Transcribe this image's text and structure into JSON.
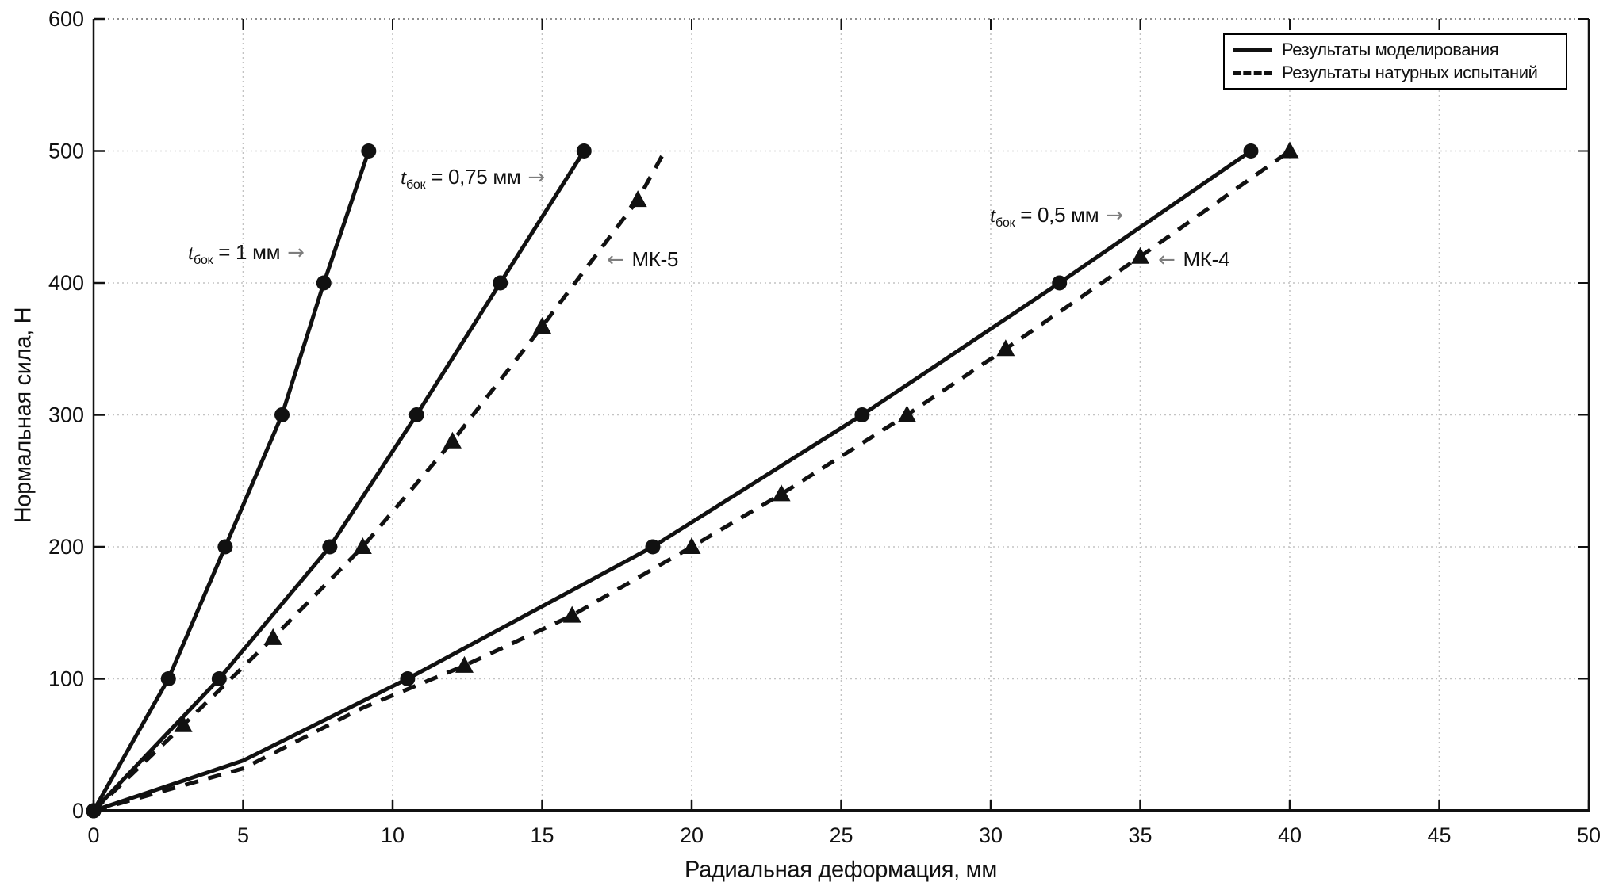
{
  "figure": {
    "background": "#ffffff",
    "line_color": "#111111",
    "grid_color": "#c3c3c3",
    "arrow_color": "#7d7d7d"
  },
  "axes": {
    "x_label": "Радиальная деформация, мм",
    "y_label": "Нормальная сила, Н"
  },
  "legend": {
    "items": [
      {
        "label": "Результаты моделирования",
        "style": "solid"
      },
      {
        "label": "Результаты натурных испытаний",
        "style": "dashed"
      }
    ]
  },
  "annotations": [
    {
      "t": "t",
      "sub": "бок",
      "rest": " = 1 мм ",
      "arrow": "→"
    },
    {
      "t": "t",
      "sub": "бок",
      "rest": " = 0,75 мм ",
      "arrow": "→"
    },
    {
      "t": "t",
      "sub": "бок",
      "rest": " = 0,5 мм ",
      "arrow": "→"
    },
    {
      "arrow": "← ",
      "text": "МК-5"
    },
    {
      "arrow": "← ",
      "text": "МК-4"
    }
  ],
  "chart_data": {
    "type": "line",
    "title": "",
    "xlabel": "Радиальная деформация, мм",
    "ylabel": "Нормальная сила, Н",
    "xlim": [
      0,
      50
    ],
    "ylim": [
      0,
      600
    ],
    "xticks": [
      0,
      5,
      10,
      15,
      20,
      25,
      30,
      35,
      40,
      45,
      50
    ],
    "yticks": [
      0,
      100,
      200,
      300,
      400,
      500,
      600
    ],
    "grid": true,
    "legend_position": "top-right",
    "series": [
      {
        "name": "Результаты моделирования, t_бок = 1 мм",
        "line": "solid",
        "marker": "circle",
        "points": [
          [
            0,
            0
          ],
          [
            2.5,
            100
          ],
          [
            4.4,
            200
          ],
          [
            6.3,
            300
          ],
          [
            7.7,
            400
          ],
          [
            9.2,
            500
          ]
        ],
        "marker_points": [
          [
            0,
            0
          ],
          [
            2.5,
            100
          ],
          [
            4.4,
            200
          ],
          [
            6.3,
            300
          ],
          [
            7.7,
            400
          ],
          [
            9.2,
            500
          ]
        ]
      },
      {
        "name": "Результаты моделирования, t_бок = 0,75 мм",
        "line": "solid",
        "marker": "circle",
        "points": [
          [
            0,
            0
          ],
          [
            4.2,
            100
          ],
          [
            7.9,
            200
          ],
          [
            10.8,
            300
          ],
          [
            13.6,
            400
          ],
          [
            16.4,
            500
          ]
        ],
        "marker_points": [
          [
            0,
            0
          ],
          [
            4.2,
            100
          ],
          [
            7.9,
            200
          ],
          [
            10.8,
            300
          ],
          [
            13.6,
            400
          ],
          [
            16.4,
            500
          ]
        ]
      },
      {
        "name": "Результаты натурных испытаний, МК-5",
        "line": "dashed",
        "marker": "triangle",
        "points": [
          [
            0,
            0
          ],
          [
            3,
            65
          ],
          [
            6,
            131
          ],
          [
            9,
            200
          ],
          [
            12,
            280
          ],
          [
            15,
            367
          ],
          [
            18.2,
            463
          ],
          [
            19.1,
            500
          ]
        ],
        "marker_points": [
          [
            3,
            65
          ],
          [
            6,
            131
          ],
          [
            9,
            200
          ],
          [
            12,
            280
          ],
          [
            15,
            367
          ],
          [
            18.2,
            463
          ]
        ]
      },
      {
        "name": "Результаты моделирования, t_бок = 0,5 мм",
        "line": "solid",
        "marker": "circle",
        "points": [
          [
            0,
            0
          ],
          [
            5,
            38
          ],
          [
            10.5,
            100
          ],
          [
            18.7,
            200
          ],
          [
            25.7,
            300
          ],
          [
            32.3,
            400
          ],
          [
            38.7,
            500
          ]
        ],
        "marker_points": [
          [
            0,
            0
          ],
          [
            10.5,
            100
          ],
          [
            18.7,
            200
          ],
          [
            25.7,
            300
          ],
          [
            32.3,
            400
          ],
          [
            38.7,
            500
          ]
        ]
      },
      {
        "name": "Результаты натурных испытаний, МК-4",
        "line": "dashed",
        "marker": "triangle",
        "points": [
          [
            0,
            0
          ],
          [
            5,
            32
          ],
          [
            9,
            78
          ],
          [
            12.4,
            110
          ],
          [
            16,
            148
          ],
          [
            20,
            200
          ],
          [
            23,
            240
          ],
          [
            27.2,
            300
          ],
          [
            30.5,
            350
          ],
          [
            35,
            420
          ],
          [
            40,
            500
          ]
        ],
        "marker_points": [
          [
            12.4,
            110
          ],
          [
            16,
            148
          ],
          [
            20,
            200
          ],
          [
            23,
            240
          ],
          [
            27.2,
            300
          ],
          [
            30.5,
            350
          ],
          [
            35,
            420
          ],
          [
            40,
            500
          ]
        ]
      }
    ]
  }
}
